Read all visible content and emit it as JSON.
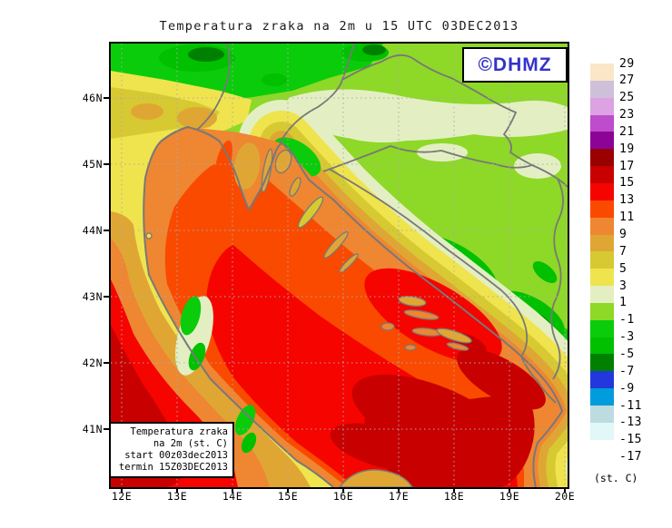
{
  "title": "Temperatura zraka na 2m u 15 UTC 03DEC2013",
  "logo": {
    "text": "©DHMZ",
    "color": "#3333CC"
  },
  "info_box": {
    "lines": [
      "Temperatura zraka",
      "na 2m (st. C)",
      "start 00z03dec2013",
      "termin 15Z03DEC2013"
    ]
  },
  "axes": {
    "lat_labels": [
      "46N",
      "45N",
      "44N",
      "43N",
      "42N",
      "41N"
    ],
    "lon_labels": [
      "12E",
      "13E",
      "14E",
      "15E",
      "16E",
      "17E",
      "18E",
      "19E",
      "20E"
    ]
  },
  "legend": {
    "unit": "(st. C)",
    "boundaries": [
      "29",
      "27",
      "25",
      "23",
      "21",
      "19",
      "17",
      "15",
      "13",
      "11",
      "9",
      "7",
      "5",
      "3",
      "1",
      "-1",
      "-3",
      "-5",
      "-7",
      "-9",
      "-11",
      "-13",
      "-15",
      "-17"
    ],
    "colors": [
      "#FBE6C8",
      "#CFC0DA",
      "#DCA2E2",
      "#BE4CCC",
      "#8C0496",
      "#9A0000",
      "#C80000",
      "#F60400",
      "#FA4A00",
      "#EE8632",
      "#E0A634",
      "#D7C932",
      "#EFE44E",
      "#E3EFC2",
      "#8ED827",
      "#0ACC0A",
      "#00C000",
      "#008000",
      "#2238DD",
      "#019CDB",
      "#BCDCE0",
      "#E2F7F7",
      "#FFFFFF"
    ]
  }
}
